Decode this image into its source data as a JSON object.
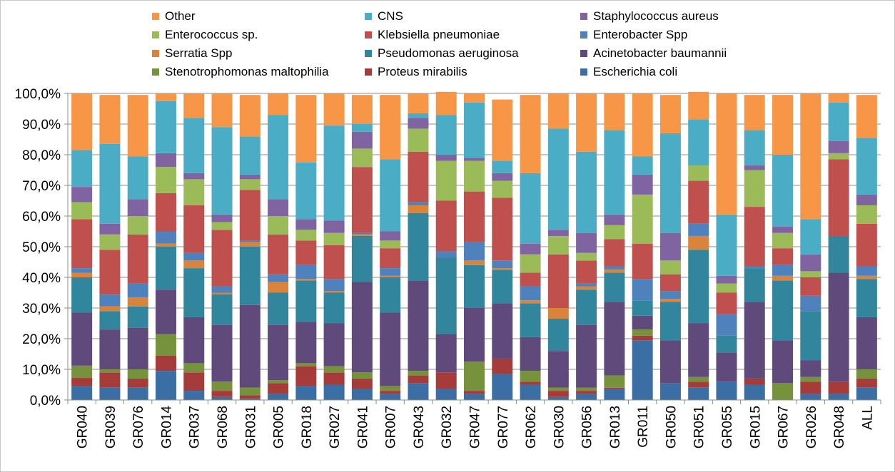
{
  "chart_data": {
    "type": "bar",
    "stacked": true,
    "percent": true,
    "categories": [
      "GR040",
      "GR039",
      "GR076",
      "GR014",
      "GR037",
      "GR068",
      "GR031",
      "GR005",
      "GR018",
      "GR027",
      "GR041",
      "GR007",
      "GR043",
      "GR032",
      "GR047",
      "GR077",
      "GR062",
      "GR030",
      "GR056",
      "GR013",
      "GR011",
      "GR050",
      "GR051",
      "GR055",
      "GR015",
      "GR067",
      "GR026",
      "GR048",
      "ALL"
    ],
    "ylim": [
      0,
      100
    ],
    "yticks": [
      "0,0%",
      "10,0%",
      "20,0%",
      "30,0%",
      "40,0%",
      "50,0%",
      "60,0%",
      "70,0%",
      "80,0%",
      "90,0%",
      "100,0%"
    ],
    "legend_position": "top",
    "grid": true,
    "legend": [
      {
        "name": "Other",
        "color": "#f79646"
      },
      {
        "name": "CNS",
        "color": "#4bacc6"
      },
      {
        "name": "Staphylococcus aureus",
        "color": "#8064a2"
      },
      {
        "name": "Enterococcus sp.",
        "color": "#9bbb59"
      },
      {
        "name": "Klebsiella pneumoniae",
        "color": "#c0504d"
      },
      {
        "name": "Enterobacter Spp",
        "color": "#4f81bd"
      },
      {
        "name": "Serratia Spp",
        "color": "#d9843a"
      },
      {
        "name": "Pseudomonas aeruginosa",
        "color": "#31859c"
      },
      {
        "name": "Acinetobacter baumannii",
        "color": "#604a7b"
      },
      {
        "name": "Stenotrophomonas maltophilia",
        "color": "#76923c"
      },
      {
        "name": "Proteus mirabilis",
        "color": "#a63c3a"
      },
      {
        "name": "Escherichia coli",
        "color": "#3a6ea5"
      }
    ],
    "stack_order": [
      "Escherichia coli",
      "Proteus mirabilis",
      "Stenotrophomonas maltophilia",
      "Acinetobacter baumannii",
      "Pseudomonas aeruginosa",
      "Serratia Spp",
      "Enterobacter Spp",
      "Klebsiella pneumoniae",
      "Enterococcus sp.",
      "Staphylococcus aureus",
      "CNS",
      "Other"
    ],
    "series": [
      {
        "name": "Escherichia coli",
        "values": [
          4.5,
          4,
          4,
          9.5,
          3,
          1,
          0.5,
          2,
          4.5,
          5,
          3.5,
          2,
          5.5,
          3.5,
          2,
          8.5,
          5,
          1,
          2,
          3.5,
          19.5,
          5.5,
          4,
          6,
          5,
          0,
          2,
          2,
          4
        ]
      },
      {
        "name": "Proteus mirabilis",
        "values": [
          2.7,
          5,
          3,
          5,
          6,
          2,
          1,
          3.5,
          6.5,
          4,
          3.5,
          1,
          2.5,
          5.5,
          1,
          5,
          1,
          2,
          1,
          0.5,
          1.5,
          0,
          2,
          0,
          2,
          0,
          4,
          4,
          3
        ]
      },
      {
        "name": "Stenotrophomonas maltophilia",
        "values": [
          4,
          1,
          3,
          7,
          3,
          3,
          2.5,
          1,
          1,
          2,
          2,
          1.5,
          1.5,
          0,
          9.5,
          0,
          3.5,
          1,
          1,
          4,
          2,
          0,
          1.5,
          0,
          0,
          5.5,
          1.5,
          0,
          3
        ]
      },
      {
        "name": "Acinetobacter baumannii",
        "values": [
          17.3,
          13,
          13.5,
          14.5,
          15,
          18.5,
          27,
          18,
          13.5,
          14,
          29.5,
          24,
          29.5,
          12.5,
          17.5,
          18,
          11,
          12,
          20.5,
          24,
          4.5,
          14,
          17.5,
          9.5,
          25,
          14,
          5.5,
          35.5,
          17
        ]
      },
      {
        "name": "Pseudomonas aeruginosa",
        "values": [
          11.5,
          6,
          7,
          14,
          16,
          10,
          19,
          10.5,
          13.5,
          10,
          15,
          11.5,
          22,
          25,
          14,
          11,
          11,
          10.5,
          11.5,
          9.5,
          5,
          12.5,
          24,
          5.5,
          11,
          19.5,
          16,
          12,
          12.5
        ]
      },
      {
        "name": "Serratia Spp",
        "values": [
          1.5,
          1.5,
          3,
          1,
          2.5,
          0.5,
          1.5,
          3.5,
          0.5,
          0.5,
          0.5,
          0.5,
          2.5,
          0,
          1.5,
          0.5,
          1,
          3.5,
          1,
          1,
          0,
          1,
          4.5,
          0,
          0,
          1.5,
          0,
          0,
          1
        ]
      },
      {
        "name": "Enterobacter Spp",
        "values": [
          1.5,
          4,
          4.5,
          4,
          2.5,
          2,
          0.5,
          2.5,
          4.5,
          4,
          0.5,
          2.5,
          1,
          2,
          6,
          2.5,
          4.5,
          0,
          1,
          1,
          7,
          2.5,
          4,
          7,
          0.5,
          3.5,
          5,
          0,
          3
        ]
      },
      {
        "name": "Klebsiella pneumoniae",
        "values": [
          16,
          14.5,
          16,
          12.5,
          15.5,
          18.5,
          16.5,
          13,
          8,
          11,
          21.5,
          6.5,
          16.5,
          16.5,
          16.5,
          20.5,
          4.5,
          17.5,
          7.5,
          9,
          11.5,
          5.5,
          14,
          7,
          19.5,
          5.5,
          6,
          25,
          14
        ]
      },
      {
        "name": "Enterococcus sp.",
        "values": [
          5.5,
          5,
          6,
          8.5,
          8.5,
          2.5,
          3.5,
          6,
          3.5,
          4,
          6,
          2.5,
          7.5,
          13,
          10,
          5.5,
          6,
          6,
          2.5,
          4.5,
          16,
          4.5,
          5,
          3,
          12,
          5,
          2,
          2,
          6
        ]
      },
      {
        "name": "Staphylococcus aureus",
        "values": [
          5,
          3.5,
          5.5,
          4.5,
          2,
          2.5,
          1.5,
          5.5,
          3.5,
          4,
          5.5,
          3,
          3.5,
          2,
          1,
          2.5,
          3.5,
          2,
          6.5,
          3.5,
          6.5,
          9,
          0,
          2.5,
          1.5,
          2,
          5.5,
          4,
          3.5
        ]
      },
      {
        "name": "CNS",
        "values": [
          12,
          26,
          14,
          17,
          18,
          28.5,
          12.5,
          27.5,
          18.5,
          31,
          2.5,
          23.5,
          1.5,
          13,
          18,
          4,
          23,
          33,
          26.5,
          27.5,
          6,
          32.5,
          15,
          20,
          11.5,
          23.5,
          11.5,
          12.5,
          18.5
        ]
      },
      {
        "name": "Other",
        "values": [
          18.5,
          16,
          20,
          2.5,
          8,
          11,
          13.5,
          7,
          22,
          10.5,
          9.5,
          21,
          6.5,
          7.5,
          3,
          20,
          25.5,
          11.5,
          19,
          12,
          20.5,
          12.5,
          9,
          39.5,
          11.5,
          19.5,
          41,
          3,
          14
        ]
      }
    ]
  }
}
